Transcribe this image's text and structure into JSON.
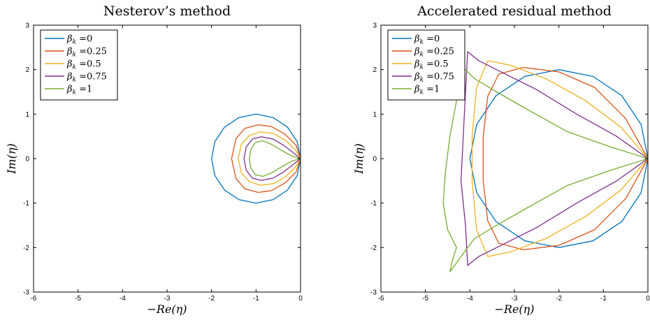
{
  "chart_data": [
    {
      "type": "line",
      "title": "Nesterov’s method",
      "xlabel": "−Re(η)",
      "ylabel": "Im(η)",
      "xlim": [
        -6,
        0
      ],
      "ylim": [
        -3,
        3
      ],
      "xticks": [
        "-6",
        "-5",
        "-4",
        "-3",
        "-2",
        "-1",
        "0"
      ],
      "yticks": [
        "3",
        "2",
        "1",
        "0",
        "-1",
        "-2",
        "-3"
      ],
      "grid": false,
      "legend_position": "top-left",
      "series": [
        {
          "name": "βk =0",
          "color": "#0072BD",
          "x": [
            0.0,
            -0.0761,
            -0.2929,
            -0.6173,
            -1.0,
            -1.3827,
            -1.7071,
            -1.9239,
            -2.0,
            -1.9239,
            -1.7071,
            -1.3827,
            -1.0,
            -0.6173,
            -0.2929,
            -0.0761,
            0.0
          ],
          "y": [
            0.0,
            0.3827,
            0.7071,
            0.9239,
            1.0,
            0.9239,
            0.7071,
            0.3827,
            0.0,
            -0.3827,
            -0.7071,
            -0.9239,
            -1.0,
            -0.9239,
            -0.7071,
            -0.3827,
            0.0
          ]
        },
        {
          "name": "βk =0.25",
          "color": "#D95319",
          "x": [
            0.0,
            -0.1,
            -0.35,
            -0.65,
            -0.95,
            -1.25,
            -1.45,
            -1.55,
            -1.45,
            -1.25,
            -0.95,
            -0.65,
            -0.35,
            -0.1,
            0.0
          ],
          "y": [
            0.0,
            0.3,
            0.55,
            0.72,
            0.76,
            0.68,
            0.45,
            0.0,
            -0.45,
            -0.68,
            -0.76,
            -0.72,
            -0.55,
            -0.3,
            0.0
          ]
        },
        {
          "name": "βk =0.5",
          "color": "#EDB120",
          "x": [
            0.0,
            -0.12,
            -0.35,
            -0.6,
            -0.9,
            -1.15,
            -1.33,
            -1.4,
            -1.33,
            -1.15,
            -0.9,
            -0.6,
            -0.35,
            -0.12,
            0.0
          ],
          "y": [
            0.0,
            0.2,
            0.42,
            0.56,
            0.6,
            0.52,
            0.32,
            0.0,
            -0.32,
            -0.52,
            -0.6,
            -0.56,
            -0.42,
            -0.2,
            0.0
          ]
        },
        {
          "name": "βk =0.75",
          "color": "#7E2F8E",
          "x": [
            0.0,
            -0.15,
            -0.38,
            -0.62,
            -0.88,
            -1.08,
            -1.22,
            -1.27,
            -1.22,
            -1.08,
            -0.88,
            -0.62,
            -0.38,
            -0.15,
            0.0
          ],
          "y": [
            0.0,
            0.12,
            0.3,
            0.44,
            0.49,
            0.44,
            0.26,
            0.0,
            -0.26,
            -0.44,
            -0.49,
            -0.44,
            -0.3,
            -0.12,
            0.0
          ]
        },
        {
          "name": "βk =1",
          "color": "#77AC30",
          "x": [
            0.0,
            -0.18,
            -0.42,
            -0.65,
            -0.85,
            -1.02,
            -1.12,
            -1.15,
            -1.12,
            -1.02,
            -0.85,
            -0.65,
            -0.42,
            -0.18,
            0.0
          ],
          "y": [
            0.0,
            0.05,
            0.18,
            0.32,
            0.4,
            0.36,
            0.2,
            0.0,
            -0.2,
            -0.36,
            -0.4,
            -0.32,
            -0.18,
            -0.05,
            0.0
          ]
        }
      ]
    },
    {
      "type": "line",
      "title": "Accelerated residual method",
      "xlabel": "−Re(η)",
      "ylabel": "Im(η)",
      "xlim": [
        -6,
        0
      ],
      "ylim": [
        -3,
        3
      ],
      "xticks": [
        "-6",
        "-5",
        "-4",
        "-3",
        "-2",
        "-1",
        "0"
      ],
      "yticks": [
        "3",
        "2",
        "1",
        "0",
        "-1",
        "-2",
        "-3"
      ],
      "grid": false,
      "legend_position": "top-left",
      "series": [
        {
          "name": "βk =0",
          "color": "#0072BD",
          "x": [
            0.0,
            -0.152,
            -0.586,
            -1.235,
            -2.0,
            -2.765,
            -3.414,
            -3.848,
            -4.0,
            -3.848,
            -3.414,
            -2.765,
            -2.0,
            -1.235,
            -0.586,
            -0.152,
            0.0
          ],
          "y": [
            0.0,
            0.765,
            1.414,
            1.848,
            2.0,
            1.848,
            1.414,
            0.765,
            0.0,
            -0.765,
            -1.414,
            -1.848,
            -2.0,
            -1.848,
            -1.414,
            -0.765,
            0.0
          ]
        },
        {
          "name": "βk =0.25",
          "color": "#D95319",
          "x": [
            0.0,
            -0.5,
            -1.2,
            -2.0,
            -2.8,
            -3.35,
            -3.6,
            -3.7,
            -3.7,
            -3.6,
            -3.35,
            -2.8,
            -2.0,
            -1.2,
            -0.5,
            0.0
          ],
          "y": [
            0.0,
            0.9,
            1.6,
            1.95,
            2.05,
            1.9,
            1.4,
            0.5,
            -0.5,
            -1.4,
            -1.9,
            -2.05,
            -1.95,
            -1.6,
            -0.9,
            0.0
          ]
        },
        {
          "name": "βk =0.5",
          "color": "#EDB120",
          "x": [
            0.0,
            -0.6,
            -1.4,
            -2.3,
            -3.1,
            -3.6,
            -3.85,
            -3.95,
            -3.95,
            -3.85,
            -3.6,
            -3.1,
            -2.3,
            -1.4,
            -0.6,
            0.0
          ],
          "y": [
            0.0,
            0.7,
            1.3,
            1.8,
            2.1,
            2.2,
            1.6,
            0.5,
            -0.5,
            -1.6,
            -2.2,
            -2.1,
            -1.8,
            -1.3,
            -0.7,
            0.0
          ]
        },
        {
          "name": "βk =0.75",
          "color": "#7E2F8E",
          "x": [
            0.0,
            -0.7,
            -1.6,
            -2.5,
            -3.3,
            -3.8,
            -4.05,
            -4.1,
            -4.15,
            -4.2,
            -4.1,
            -4.05,
            -3.8,
            -3.3,
            -2.5,
            -1.6,
            -0.7,
            0.0
          ],
          "y": [
            0.0,
            0.5,
            1.0,
            1.55,
            1.95,
            2.2,
            2.4,
            1.5,
            0.5,
            -0.5,
            -1.5,
            -2.4,
            -2.2,
            -1.95,
            -1.55,
            -1.0,
            -0.5,
            0.0
          ]
        },
        {
          "name": "βk =1",
          "color": "#77AC30",
          "x": [
            0.0,
            -0.8,
            -1.8,
            -2.7,
            -3.4,
            -3.9,
            -4.2,
            -4.3,
            -4.45,
            -4.55,
            -4.6,
            -4.5,
            -4.3,
            -4.4,
            -4.45,
            -4.2,
            -3.9,
            -3.4,
            -2.7,
            -1.8,
            -0.8,
            0.0
          ],
          "y": [
            0.0,
            0.25,
            0.6,
            1.1,
            1.5,
            1.8,
            2.1,
            1.3,
            0.5,
            -0.3,
            -1.0,
            -1.6,
            -2.0,
            -2.3,
            -2.55,
            -2.2,
            -1.8,
            -1.5,
            -1.1,
            -0.6,
            -0.25,
            0.0
          ]
        }
      ]
    }
  ]
}
